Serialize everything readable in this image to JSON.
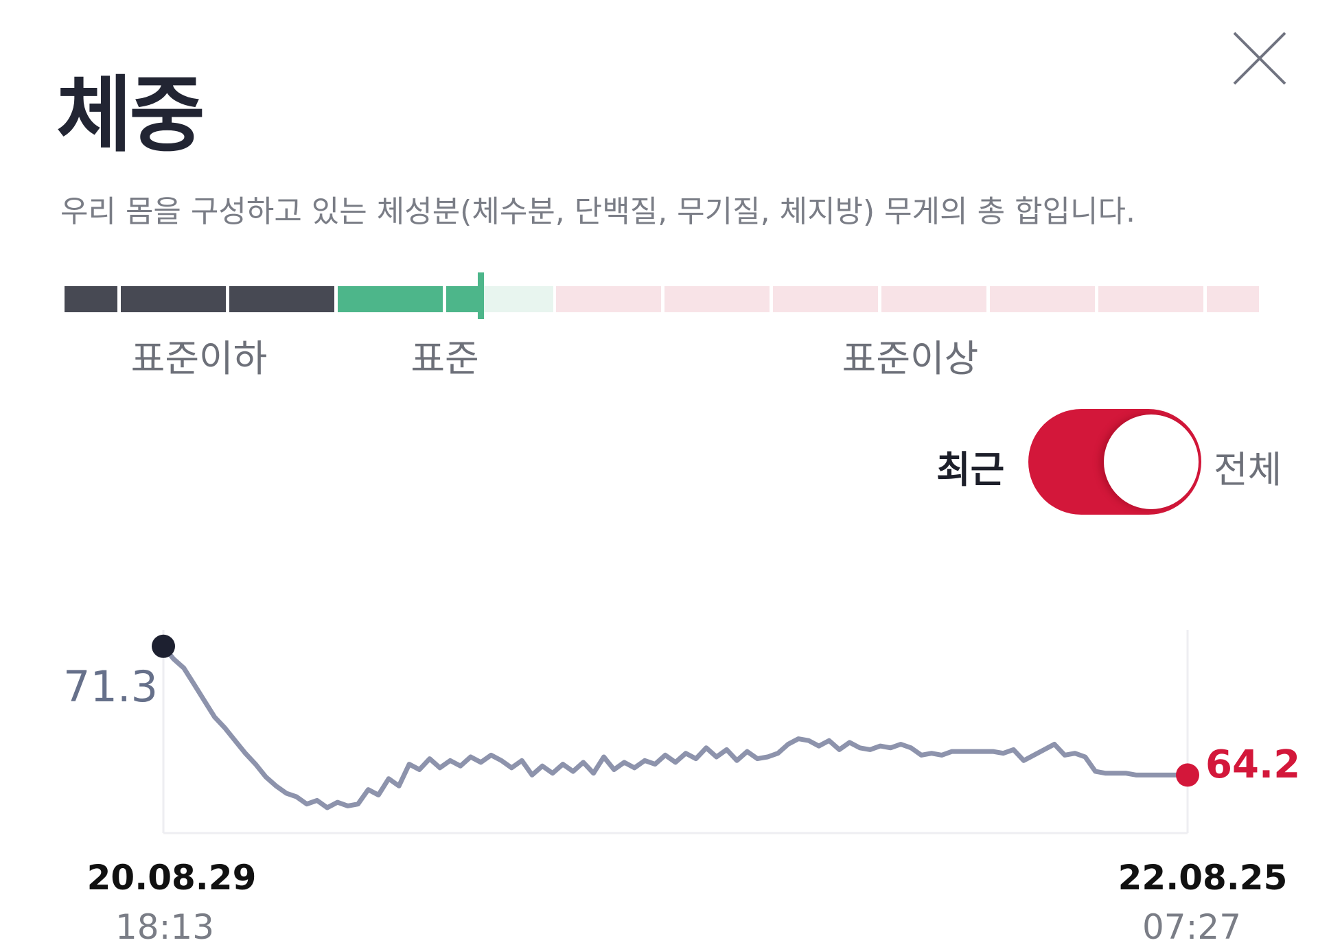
{
  "header": {
    "title": "체중",
    "description": "우리 몸을 구성하고 있는 체성분(체수분, 단백질, 무기질, 체지방) 무게의 총 합입니다."
  },
  "scale": {
    "labels": [
      "표준이하",
      "표준",
      "표준이상"
    ],
    "colors": {
      "below": "#474953",
      "standard": "#4db68a",
      "standard_light": "#e8f5ef",
      "above": "#f8e3e7",
      "marker": "#4db68a"
    }
  },
  "toggle": {
    "left_label": "최근",
    "right_label": "전체",
    "active": "최근",
    "color": "#d3173a"
  },
  "chart_data": {
    "type": "line",
    "title": "",
    "xlabel": "",
    "ylabel": "",
    "ylim": [
      61.0,
      72.2
    ],
    "grid": false,
    "start": {
      "date": "20.08.29",
      "time": "18:13",
      "value": 71.3
    },
    "end": {
      "date": "22.08.25",
      "time": "07:27",
      "value": 64.2
    },
    "start_value_label": "71.3",
    "end_value_label": "64.2",
    "series": [
      {
        "color": "#8d93ac",
        "x": [
          0,
          1,
          2,
          3,
          4,
          5,
          6,
          7,
          8,
          9,
          10,
          11,
          12,
          13,
          14,
          15,
          16,
          17,
          18,
          19,
          20,
          21,
          22,
          23,
          24,
          25,
          26,
          27,
          28,
          29,
          30,
          31,
          32,
          33,
          34,
          35,
          36,
          37,
          38,
          39,
          40,
          41,
          42,
          43,
          44,
          45,
          46,
          47,
          48,
          49,
          50,
          51,
          52,
          53,
          54,
          55,
          56,
          57,
          58,
          59,
          60,
          61,
          62,
          63,
          64,
          65,
          66,
          67,
          68,
          69,
          70,
          71,
          72,
          73,
          74,
          75,
          76,
          77,
          78,
          79,
          80,
          81,
          82,
          83,
          84,
          85,
          86,
          87,
          88,
          89,
          90,
          91,
          92,
          93,
          94,
          95,
          96,
          97,
          98,
          99,
          100
        ],
        "y": [
          71.3,
          70.6,
          70.1,
          69.2,
          68.3,
          67.4,
          66.8,
          66.1,
          65.4,
          64.8,
          64.1,
          63.6,
          63.2,
          63.0,
          62.6,
          62.8,
          62.4,
          62.7,
          62.5,
          62.6,
          63.4,
          63.1,
          64.0,
          63.6,
          64.8,
          64.5,
          65.1,
          64.6,
          65.0,
          64.7,
          65.2,
          64.9,
          65.3,
          65.0,
          64.6,
          65.0,
          64.2,
          64.7,
          64.3,
          64.8,
          64.4,
          64.9,
          64.3,
          65.2,
          64.5,
          64.9,
          64.6,
          65.0,
          64.8,
          65.3,
          64.9,
          65.4,
          65.1,
          65.7,
          65.2,
          65.6,
          65.0,
          65.5,
          65.1,
          65.2,
          65.4,
          65.9,
          66.2,
          66.1,
          65.8,
          66.1,
          65.6,
          66.0,
          65.7,
          65.6,
          65.8,
          65.7,
          65.9,
          65.7,
          65.3,
          65.4,
          65.3,
          65.5,
          65.5,
          65.5,
          65.5,
          65.5,
          65.4,
          65.6,
          65.0,
          65.3,
          65.6,
          65.9,
          65.3,
          65.4,
          65.2,
          64.4,
          64.3,
          64.3,
          64.3,
          64.2,
          64.2,
          64.2,
          64.2,
          64.2,
          64.2
        ]
      }
    ]
  }
}
